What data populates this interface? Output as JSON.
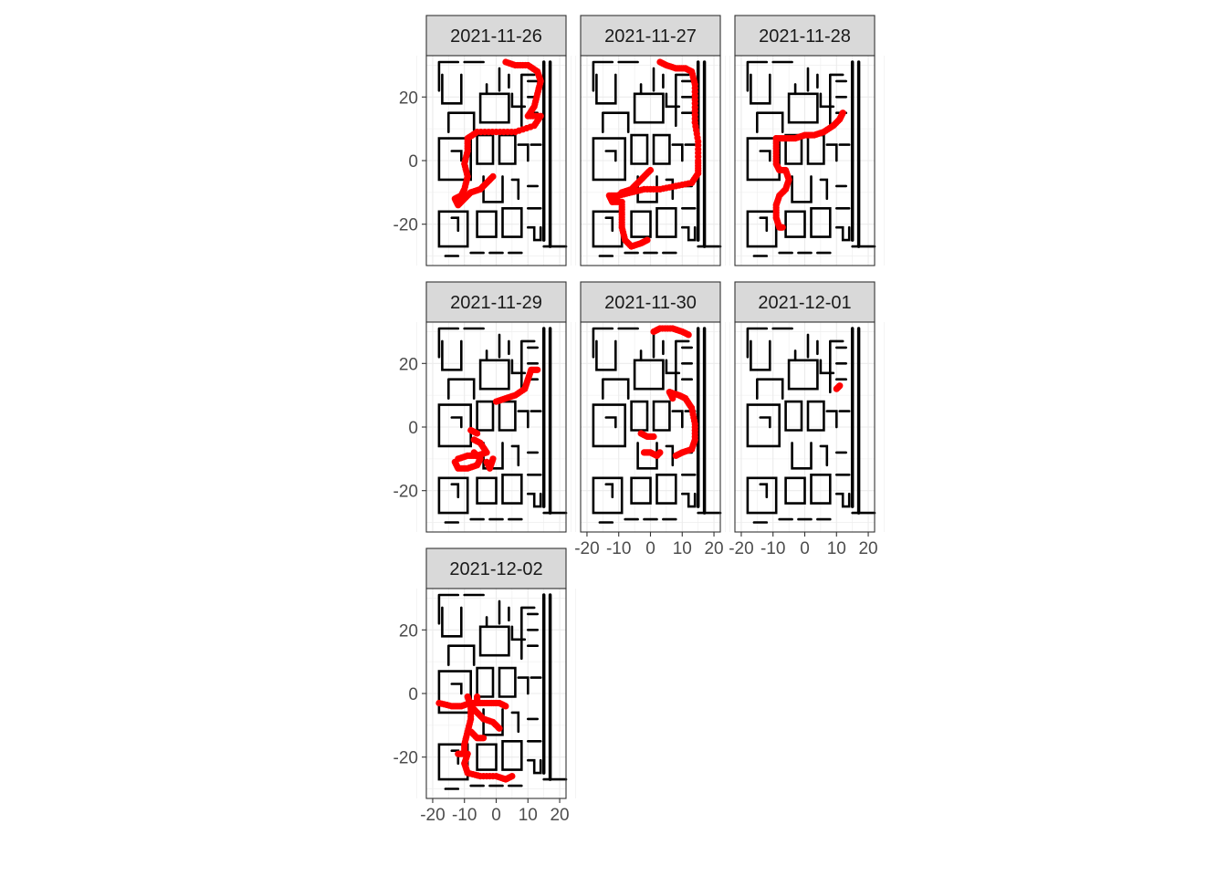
{
  "chart_data": {
    "type": "scatter",
    "layout": "facet_wrap",
    "ncol": 3,
    "xlim": [
      -22,
      22
    ],
    "ylim": [
      -33,
      33
    ],
    "x_ticks": [
      -20,
      -10,
      0,
      10,
      20
    ],
    "x_tick_labels": [
      "-20",
      "-10",
      "0",
      "10",
      "20"
    ],
    "y_ticks": [
      -20,
      0,
      20
    ],
    "y_tick_labels": [
      "-20",
      "0",
      "20"
    ],
    "grid": true,
    "point_color": "#ff0000",
    "floorplan_color": "#000000",
    "panels": [
      {
        "label": "2021-11-26",
        "tracks": [
          [
            [
              3,
              31
            ],
            [
              6,
              30
            ],
            [
              10,
              30
            ],
            [
              13,
              28
            ],
            [
              14,
              25
            ],
            [
              13,
              21
            ],
            [
              12,
              17
            ],
            [
              10,
              14
            ],
            [
              14,
              14
            ],
            [
              12,
              11
            ],
            [
              6,
              9
            ],
            [
              0,
              9
            ],
            [
              -6,
              9
            ],
            [
              -9,
              7
            ],
            [
              -9,
              3
            ],
            [
              -10,
              -1
            ],
            [
              -9,
              -5
            ],
            [
              -10,
              -9
            ],
            [
              -11,
              -11
            ],
            [
              -13,
              -12
            ],
            [
              -12,
              -14
            ],
            [
              -10,
              -12
            ],
            [
              -8,
              -10
            ],
            [
              -5,
              -9
            ],
            [
              -3,
              -7
            ],
            [
              -1,
              -5
            ]
          ]
        ]
      },
      {
        "label": "2021-11-27",
        "tracks": [
          [
            [
              3,
              31
            ],
            [
              5,
              30
            ],
            [
              8,
              29
            ],
            [
              11,
              29
            ],
            [
              13,
              28
            ],
            [
              14,
              24
            ],
            [
              14,
              18
            ],
            [
              14,
              12
            ],
            [
              15,
              6
            ],
            [
              15,
              0
            ],
            [
              15,
              -4
            ],
            [
              13,
              -7
            ],
            [
              8,
              -8
            ],
            [
              3,
              -9
            ],
            [
              -2,
              -9
            ],
            [
              -6,
              -10
            ],
            [
              -10,
              -11
            ],
            [
              -13,
              -11
            ],
            [
              -12,
              -13
            ],
            [
              -9,
              -13
            ],
            [
              -9,
              -17
            ],
            [
              -9,
              -21
            ],
            [
              -8,
              -25
            ],
            [
              -6,
              -27
            ],
            [
              -3,
              -26
            ],
            [
              -1,
              -25
            ]
          ],
          [
            [
              -12,
              -13
            ],
            [
              -9,
              -10
            ],
            [
              -6,
              -9
            ],
            [
              -4,
              -7
            ],
            [
              -2,
              -5
            ],
            [
              0,
              -3
            ]
          ]
        ]
      },
      {
        "label": "2021-11-28",
        "tracks": [
          [
            [
              -9,
              7
            ],
            [
              -6,
              7
            ],
            [
              -3,
              7
            ],
            [
              0,
              8
            ],
            [
              3,
              8
            ],
            [
              6,
              9
            ],
            [
              9,
              11
            ],
            [
              11,
              13
            ],
            [
              12,
              15
            ]
          ],
          [
            [
              -9,
              7
            ],
            [
              -9,
              3
            ],
            [
              -9,
              -1
            ],
            [
              -8,
              -3
            ],
            [
              -6,
              -3
            ],
            [
              -5,
              -6
            ],
            [
              -6,
              -9
            ],
            [
              -8,
              -11
            ],
            [
              -9,
              -14
            ],
            [
              -9,
              -18
            ],
            [
              -8,
              -21
            ],
            [
              -7,
              -21
            ]
          ]
        ]
      },
      {
        "label": "2021-11-29",
        "tracks": [
          [
            [
              0,
              8
            ],
            [
              3,
              9
            ],
            [
              6,
              10
            ],
            [
              9,
              12
            ],
            [
              10,
              15
            ],
            [
              11,
              18
            ],
            [
              13,
              18
            ]
          ],
          [
            [
              -12,
              -10
            ],
            [
              -9,
              -9
            ],
            [
              -6,
              -9
            ],
            [
              -3,
              -8
            ],
            [
              -5,
              -5
            ],
            [
              -7,
              -4
            ]
          ],
          [
            [
              -13,
              -11
            ],
            [
              -12,
              -13
            ],
            [
              -9,
              -13
            ],
            [
              -6,
              -12
            ],
            [
              -5,
              -10
            ],
            [
              -7,
              -8
            ]
          ],
          [
            [
              -8,
              -1
            ],
            [
              -6,
              -2
            ]
          ],
          [
            [
              -3,
              -11
            ],
            [
              -2,
              -13
            ],
            [
              -1,
              -10
            ]
          ]
        ]
      },
      {
        "label": "2021-11-30",
        "tracks": [
          [
            [
              1,
              30
            ],
            [
              3,
              31
            ],
            [
              7,
              31
            ],
            [
              10,
              30
            ],
            [
              12,
              29
            ]
          ],
          [
            [
              6,
              11
            ],
            [
              9,
              10
            ],
            [
              11,
              9
            ],
            [
              13,
              6
            ],
            [
              14,
              1
            ],
            [
              14,
              -4
            ],
            [
              13,
              -7
            ],
            [
              10,
              -8
            ],
            [
              8,
              -9
            ]
          ],
          [
            [
              -3,
              -2
            ],
            [
              -1,
              -3
            ],
            [
              1,
              -3
            ]
          ],
          [
            [
              -2,
              -8
            ],
            [
              0,
              -8
            ],
            [
              2,
              -9
            ],
            [
              3,
              -8
            ]
          ],
          [
            [
              6,
              11
            ],
            [
              7,
              9
            ]
          ]
        ]
      },
      {
        "label": "2021-12-01",
        "tracks": [
          [
            [
              10,
              12
            ],
            [
              11,
              13
            ]
          ]
        ]
      },
      {
        "label": "2021-12-02",
        "tracks": [
          [
            [
              -18,
              -3
            ],
            [
              -14,
              -4
            ],
            [
              -11,
              -4
            ],
            [
              -8,
              -3
            ],
            [
              -5,
              -3
            ],
            [
              -2,
              -3
            ],
            [
              1,
              -3
            ],
            [
              3,
              -4
            ]
          ],
          [
            [
              -9,
              -1
            ],
            [
              -8,
              -4
            ],
            [
              -8,
              -8
            ],
            [
              -9,
              -12
            ],
            [
              -10,
              -16
            ],
            [
              -10,
              -19
            ],
            [
              -12,
              -19
            ]
          ],
          [
            [
              -8,
              -4
            ],
            [
              -6,
              -6
            ],
            [
              -4,
              -8
            ],
            [
              -1,
              -9
            ],
            [
              1,
              -11
            ]
          ],
          [
            [
              -6,
              -1
            ],
            [
              -6,
              -3
            ]
          ],
          [
            [
              -9,
              -19
            ],
            [
              -10,
              -22
            ],
            [
              -9,
              -25
            ],
            [
              -5,
              -26
            ],
            [
              0,
              -26
            ],
            [
              3,
              -27
            ],
            [
              5,
              -26
            ]
          ],
          [
            [
              -8,
              -12
            ],
            [
              -6,
              -14
            ],
            [
              -4,
              -14
            ]
          ]
        ]
      }
    ]
  }
}
